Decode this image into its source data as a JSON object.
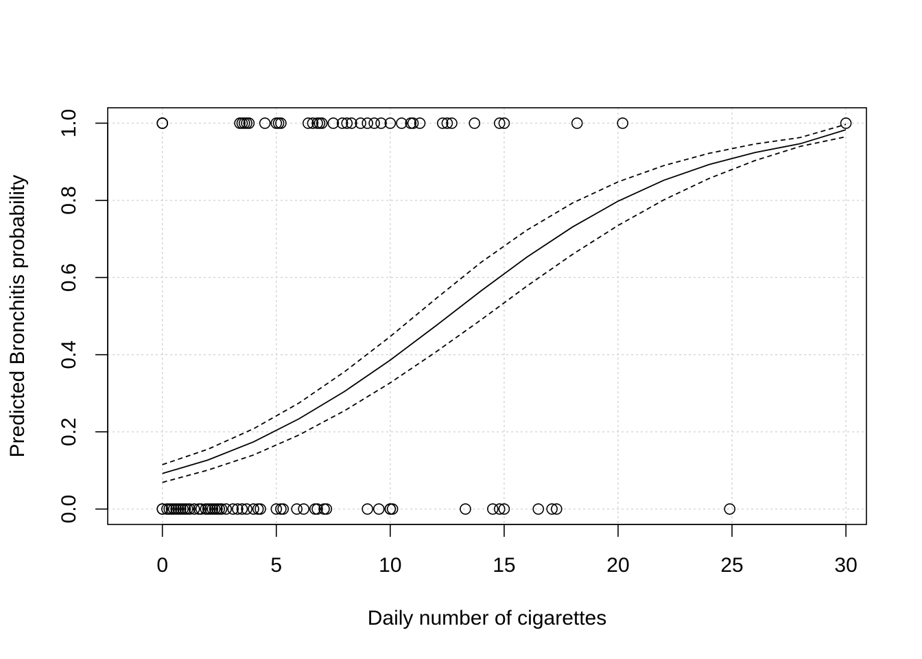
{
  "chart_data": {
    "type": "scatter",
    "title": "",
    "xlabel": "Daily number of cigarettes",
    "ylabel": "Predicted Bronchitis probability",
    "xlim": [
      -2.4,
      30.9
    ],
    "ylim": [
      -0.04,
      1.04
    ],
    "x_ticks": [
      0,
      5,
      10,
      15,
      20,
      25,
      30
    ],
    "y_ticks": [
      0.0,
      0.2,
      0.4,
      0.6,
      0.8,
      1.0
    ],
    "x_tick_labels": [
      "0",
      "5",
      "10",
      "15",
      "20",
      "25",
      "30"
    ],
    "y_tick_labels": [
      "0.0",
      "0.2",
      "0.4",
      "0.6",
      "0.8",
      "1.0"
    ],
    "grid": true,
    "series": [
      {
        "kind": "points",
        "marker": "open-circle",
        "points": [
          [
            0,
            1
          ],
          [
            0,
            1
          ],
          [
            0,
            1
          ],
          [
            3.4,
            1
          ],
          [
            3.5,
            1
          ],
          [
            3.6,
            1
          ],
          [
            3.7,
            1
          ],
          [
            3.8,
            1
          ],
          [
            4.5,
            1
          ],
          [
            5.0,
            1
          ],
          [
            5.1,
            1
          ],
          [
            5.2,
            1
          ],
          [
            6.4,
            1
          ],
          [
            6.6,
            1
          ],
          [
            6.8,
            1
          ],
          [
            6.9,
            1
          ],
          [
            7.0,
            1
          ],
          [
            7.5,
            1
          ],
          [
            7.9,
            1
          ],
          [
            8.1,
            1
          ],
          [
            8.3,
            1
          ],
          [
            8.7,
            1
          ],
          [
            9.0,
            1
          ],
          [
            9.3,
            1
          ],
          [
            9.6,
            1
          ],
          [
            10.0,
            1
          ],
          [
            10.5,
            1
          ],
          [
            10.9,
            1
          ],
          [
            11.0,
            1
          ],
          [
            11.3,
            1
          ],
          [
            12.3,
            1
          ],
          [
            12.5,
            1
          ],
          [
            12.7,
            1
          ],
          [
            13.7,
            1
          ],
          [
            14.8,
            1
          ],
          [
            15.0,
            1
          ],
          [
            18.2,
            1
          ],
          [
            20.2,
            1
          ],
          [
            30.0,
            1
          ],
          [
            0,
            0
          ],
          [
            0,
            0
          ],
          [
            0.2,
            0
          ],
          [
            0.3,
            0
          ],
          [
            0.4,
            0
          ],
          [
            0.5,
            0
          ],
          [
            0.6,
            0
          ],
          [
            0.7,
            0
          ],
          [
            0.8,
            0
          ],
          [
            0.9,
            0
          ],
          [
            1.0,
            0
          ],
          [
            1.1,
            0
          ],
          [
            1.2,
            0
          ],
          [
            1.4,
            0
          ],
          [
            1.6,
            0
          ],
          [
            1.7,
            0
          ],
          [
            1.9,
            0
          ],
          [
            2.0,
            0
          ],
          [
            2.1,
            0
          ],
          [
            2.2,
            0
          ],
          [
            2.3,
            0
          ],
          [
            2.4,
            0
          ],
          [
            2.5,
            0
          ],
          [
            2.6,
            0
          ],
          [
            2.8,
            0
          ],
          [
            3.1,
            0
          ],
          [
            3.3,
            0
          ],
          [
            3.5,
            0
          ],
          [
            3.7,
            0
          ],
          [
            4.0,
            0
          ],
          [
            4.2,
            0
          ],
          [
            4.3,
            0
          ],
          [
            5.0,
            0
          ],
          [
            5.2,
            0
          ],
          [
            5.3,
            0
          ],
          [
            5.9,
            0
          ],
          [
            6.2,
            0
          ],
          [
            6.7,
            0
          ],
          [
            6.8,
            0
          ],
          [
            7.1,
            0
          ],
          [
            7.2,
            0
          ],
          [
            9.0,
            0
          ],
          [
            9.5,
            0
          ],
          [
            10.0,
            0
          ],
          [
            10.0,
            0
          ],
          [
            10.1,
            0
          ],
          [
            13.3,
            0
          ],
          [
            14.5,
            0
          ],
          [
            14.8,
            0
          ],
          [
            15.0,
            0
          ],
          [
            16.5,
            0
          ],
          [
            17.1,
            0
          ],
          [
            17.3,
            0
          ],
          [
            24.9,
            0
          ]
        ]
      },
      {
        "kind": "line",
        "style": "solid",
        "x": [
          0,
          2,
          4,
          6,
          8,
          10,
          12,
          14,
          16,
          18,
          20,
          22,
          24,
          26,
          28,
          30
        ],
        "y": [
          0.092,
          0.127,
          0.174,
          0.234,
          0.305,
          0.386,
          0.475,
          0.566,
          0.653,
          0.731,
          0.798,
          0.852,
          0.893,
          0.924,
          0.947,
          0.983
        ]
      },
      {
        "kind": "line",
        "style": "dashed",
        "x": [
          0,
          2,
          4,
          6,
          8,
          10,
          12,
          14,
          16,
          18,
          20,
          22,
          24,
          26,
          28,
          30
        ],
        "y": [
          0.115,
          0.155,
          0.208,
          0.275,
          0.356,
          0.447,
          0.545,
          0.64,
          0.723,
          0.793,
          0.848,
          0.89,
          0.922,
          0.946,
          0.963,
          0.997
        ]
      },
      {
        "kind": "line",
        "style": "dashed",
        "x": [
          0,
          2,
          4,
          6,
          8,
          10,
          12,
          14,
          16,
          18,
          20,
          22,
          24,
          26,
          28,
          30
        ],
        "y": [
          0.069,
          0.101,
          0.14,
          0.192,
          0.255,
          0.327,
          0.407,
          0.491,
          0.578,
          0.66,
          0.735,
          0.801,
          0.857,
          0.903,
          0.94,
          0.965
        ]
      }
    ]
  }
}
